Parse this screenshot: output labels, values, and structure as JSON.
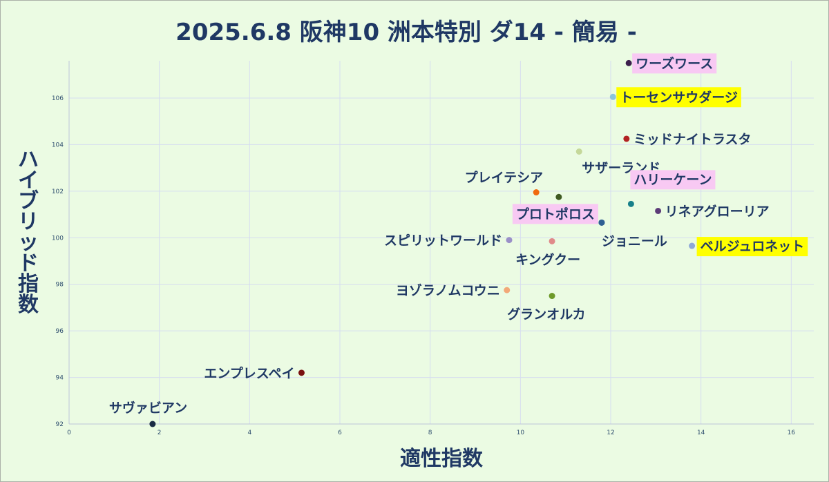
{
  "chart_data": {
    "type": "scatter",
    "title": "2025.6.8 阪神10 洲本特別 ダ14 - 簡易 -",
    "xlabel": "適性指数",
    "ylabel": "ハイブリッド指数",
    "xlim": [
      0,
      16.5
    ],
    "ylim": [
      92,
      107.6
    ],
    "xticks": [
      "0",
      "2",
      "4",
      "6",
      "8",
      "10",
      "12",
      "14",
      "16"
    ],
    "yticks": [
      "92",
      "94",
      "96",
      "98",
      "100",
      "102",
      "104",
      "106"
    ],
    "grid": true,
    "points": [
      {
        "label": "ワーズワース",
        "x": 12.4,
        "y": 107.5,
        "color": "#3d1f4d",
        "highlight": "#f8c9f3"
      },
      {
        "label": "トーセンサウダージ",
        "x": 12.05,
        "y": 106.05,
        "color": "#8cc4dc",
        "highlight": "#ffff00"
      },
      {
        "label": "ミッドナイトラスタ",
        "x": 12.35,
        "y": 104.25,
        "color": "#b22222",
        "highlight": ""
      },
      {
        "label": "サザーランド",
        "x": 11.3,
        "y": 103.7,
        "color": "#c5d89a",
        "highlight": ""
      },
      {
        "label": "プレイテシア",
        "x": 10.35,
        "y": 101.95,
        "color": "#f06a10",
        "highlight": ""
      },
      {
        "label": "",
        "x": 10.85,
        "y": 101.75,
        "color": "#3f5a22",
        "highlight": ""
      },
      {
        "label": "ハリーケーン",
        "x": 12.45,
        "y": 101.45,
        "color": "#17808a",
        "highlight": "#f8c9f3"
      },
      {
        "label": "リネアグローリア",
        "x": 13.05,
        "y": 101.15,
        "color": "#5c3b78",
        "highlight": ""
      },
      {
        "label": "プロトポロス",
        "x": 11.8,
        "y": 100.65,
        "color": "#2f5f93",
        "highlight": "#f8c9f3"
      },
      {
        "label": "ジョニール",
        "x": 11.8,
        "y": 100.65,
        "color": "#2f5f93",
        "highlight": ""
      },
      {
        "label": "スピリットワールド",
        "x": 9.75,
        "y": 99.9,
        "color": "#9a90c8",
        "highlight": ""
      },
      {
        "label": "キングクー",
        "x": 10.7,
        "y": 99.85,
        "color": "#e08a8a",
        "highlight": ""
      },
      {
        "label": "ベルジュロネット",
        "x": 13.8,
        "y": 99.65,
        "color": "#8fa8d8",
        "highlight": "#ffff00"
      },
      {
        "label": "ヨゾラノムコウニ",
        "x": 9.7,
        "y": 97.75,
        "color": "#f2a878",
        "highlight": ""
      },
      {
        "label": "グランオルカ",
        "x": 10.7,
        "y": 97.5,
        "color": "#6e9a2a",
        "highlight": ""
      },
      {
        "label": "エンプレスペイ",
        "x": 5.15,
        "y": 94.2,
        "color": "#7a1010",
        "highlight": ""
      },
      {
        "label": "サヴァビアン",
        "x": 1.85,
        "y": 92.0,
        "color": "#1a2b45",
        "highlight": ""
      }
    ]
  }
}
